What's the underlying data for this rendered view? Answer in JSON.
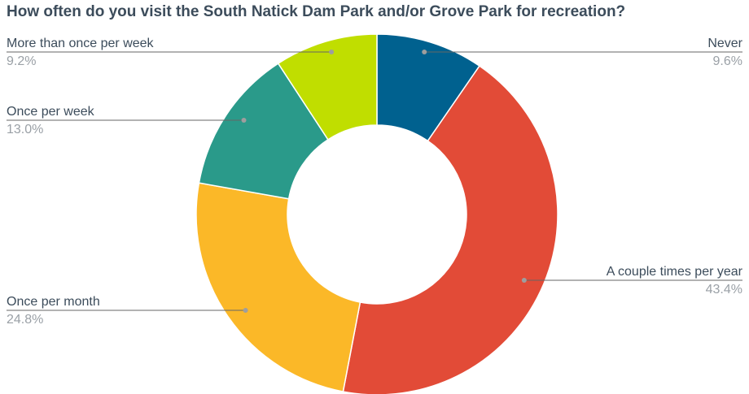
{
  "chart_data": {
    "type": "pie",
    "title": "How often do you visit the South Natick Dam Park and/or Grove Park for recreation?",
    "donut": true,
    "slices": [
      {
        "label": "Never",
        "value": 9.6,
        "value_label": "9.6%",
        "color": "#00618f"
      },
      {
        "label": "A couple times per year",
        "value": 43.4,
        "value_label": "43.4%",
        "color": "#e24b37"
      },
      {
        "label": "Once per month",
        "value": 24.8,
        "value_label": "24.8%",
        "color": "#fbb828"
      },
      {
        "label": "Once per week",
        "value": 13.0,
        "value_label": "13.0%",
        "color": "#2a9a8a"
      },
      {
        "label": "More than once per week",
        "value": 9.2,
        "value_label": "9.2%",
        "color": "#c0de00"
      }
    ]
  }
}
